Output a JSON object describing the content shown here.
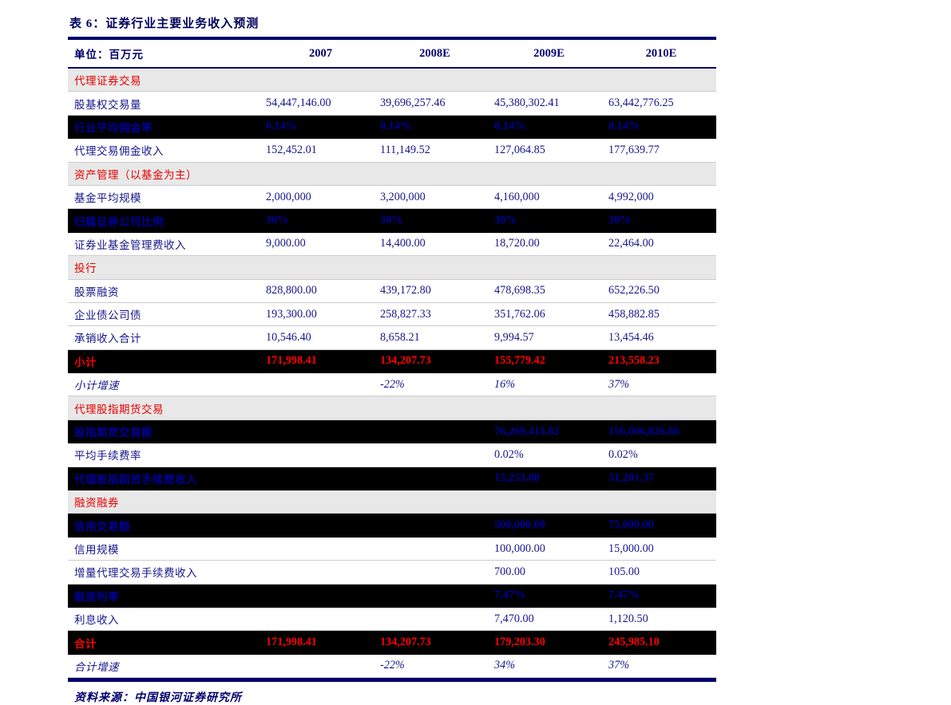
{
  "table": {
    "title": "表 6：证券行业主要业务收入预测",
    "unit_label": "单位：百万元",
    "columns": [
      "2007",
      "2008E",
      "2009E",
      "2010E"
    ],
    "rows": [
      {
        "type": "section",
        "label": "代理证券交易"
      },
      {
        "type": "data",
        "label": "股基权交易量",
        "values": [
          "54,447,146.00",
          "39,696,257.46",
          "45,380,302.41",
          "63,442,776.25"
        ]
      },
      {
        "type": "dark",
        "label": "行业平均佣金率",
        "values": [
          "0.14%",
          "0.14%",
          "0.14%",
          "0.14%"
        ]
      },
      {
        "type": "data",
        "label": "代理交易佣金收入",
        "values": [
          "152,452.01",
          "111,149.52",
          "127,064.85",
          "177,639.77"
        ]
      },
      {
        "type": "section",
        "label": "资产管理（以基金为主）"
      },
      {
        "type": "data",
        "label": "基金平均规模",
        "values": [
          "2,000,000",
          "3,200,000",
          "4,160,000",
          "4,992,000"
        ]
      },
      {
        "type": "dark",
        "label": "归属证券公司比例",
        "values": [
          "30%",
          "30%",
          "30%",
          "30%"
        ]
      },
      {
        "type": "data",
        "label": "证券业基金管理费收入",
        "values": [
          "9,000.00",
          "14,400.00",
          "18,720.00",
          "22,464.00"
        ]
      },
      {
        "type": "section",
        "label": "投行"
      },
      {
        "type": "data",
        "label": "股票融资",
        "values": [
          "828,800.00",
          "439,172.80",
          "478,698.35",
          "652,226.50"
        ]
      },
      {
        "type": "data",
        "label": "企业债公司债",
        "values": [
          "193,300.00",
          "258,827.33",
          "351,762.06",
          "458,882.85"
        ]
      },
      {
        "type": "data",
        "label": "承销收入合计",
        "values": [
          "10,546.40",
          "8,658.21",
          "9,994.57",
          "13,454.46"
        ]
      },
      {
        "type": "total",
        "label": "小计",
        "values": [
          "171,998.41",
          "134,207.73",
          "155,779.42",
          "213,558.23"
        ]
      },
      {
        "type": "growth",
        "label": "小计增速",
        "values": [
          "",
          "-22%",
          "16%",
          "37%"
        ]
      },
      {
        "type": "section",
        "label": "代理股指期货交易"
      },
      {
        "type": "dark",
        "label": "股指期货交易额",
        "values": [
          "",
          "",
          "76,269,415.82",
          "156,006,826.86"
        ]
      },
      {
        "type": "data",
        "label": "平均手续费率",
        "values": [
          "",
          "",
          "0.02%",
          "0.02%"
        ]
      },
      {
        "type": "dark",
        "label": "代理股指期货手续费收入",
        "values": [
          "",
          "",
          "15,253.88",
          "31,201.37"
        ]
      },
      {
        "type": "section",
        "label": "融资融券"
      },
      {
        "type": "dark",
        "label": "信用交易额",
        "values": [
          "",
          "",
          "500,000.00",
          "75,000.00"
        ]
      },
      {
        "type": "data",
        "label": "信用规模",
        "values": [
          "",
          "",
          "100,000.00",
          "15,000.00"
        ]
      },
      {
        "type": "data",
        "label": "增量代理交易手续费收入",
        "values": [
          "",
          "",
          "700.00",
          "105.00"
        ]
      },
      {
        "type": "dark",
        "label": "融资利率",
        "values": [
          "",
          "",
          "7.47%",
          "7.47%"
        ]
      },
      {
        "type": "data",
        "label": "利息收入",
        "values": [
          "",
          "",
          "7,470.00",
          "1,120.50"
        ]
      },
      {
        "type": "total",
        "label": "合计",
        "values": [
          "171,998.41",
          "134,207.73",
          "179,203.30",
          "245,985.10"
        ]
      },
      {
        "type": "growth",
        "label": "合计增速",
        "values": [
          "",
          "-22%",
          "34%",
          "37%"
        ]
      }
    ],
    "source": "资料来源：中国银河证券研究所"
  },
  "colors": {
    "navy_text": "#16168b",
    "navy_header": "#00006e",
    "navy_rule": "#00006a",
    "section_red": "#e60000",
    "total_red": "#ff0000",
    "section_bg": "#e8e8e8",
    "dark_row_bg": "#000000"
  }
}
